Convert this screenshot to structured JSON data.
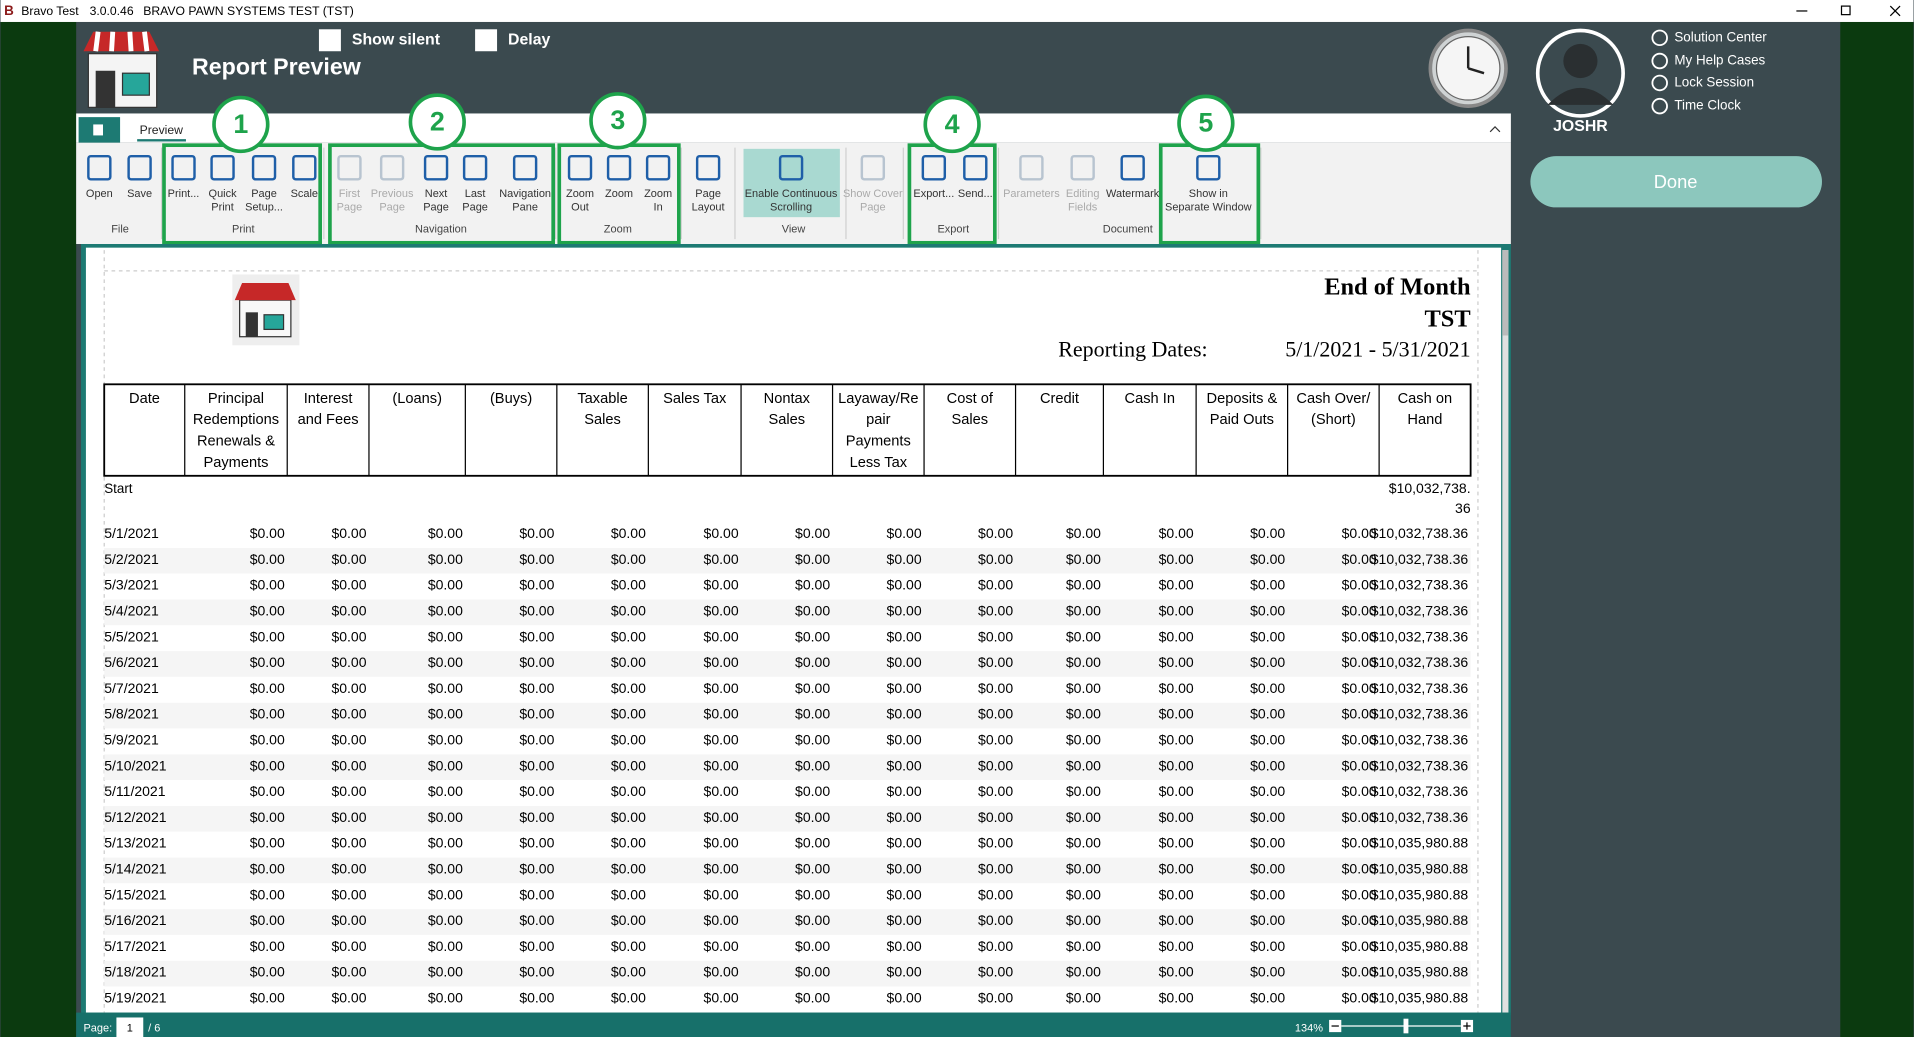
{
  "title_bar": {
    "app": "Bravo Test",
    "version": "3.0.0.46",
    "system": "BRAVO PAWN SYSTEMS TEST (TST)"
  },
  "header": {
    "title": "Report Preview",
    "show_silent": "Show silent",
    "delay": "Delay"
  },
  "tab": "Preview",
  "ribbon": {
    "groups": [
      "File",
      "Print",
      "Navigation",
      "Zoom",
      "View",
      "Export",
      "Document"
    ],
    "buttons": [
      {
        "label": [
          "Open"
        ],
        "enabled": true
      },
      {
        "label": [
          "Save"
        ],
        "enabled": true
      },
      {
        "label": [
          "Print..."
        ],
        "enabled": true
      },
      {
        "label": [
          "Quick",
          "Print"
        ],
        "enabled": true
      },
      {
        "label": [
          "Page",
          "Setup..."
        ],
        "enabled": true
      },
      {
        "label": [
          "Scale"
        ],
        "enabled": true
      },
      {
        "label": [
          "First",
          "Page"
        ],
        "enabled": false
      },
      {
        "label": [
          "Previous",
          "Page"
        ],
        "enabled": false
      },
      {
        "label": [
          "Next",
          "Page"
        ],
        "enabled": true
      },
      {
        "label": [
          "Last",
          "Page"
        ],
        "enabled": true
      },
      {
        "label": [
          "Navigation",
          "Pane"
        ],
        "enabled": true
      },
      {
        "label": [
          "Zoom",
          "Out"
        ],
        "enabled": true
      },
      {
        "label": [
          "Zoom"
        ],
        "enabled": true
      },
      {
        "label": [
          "Zoom",
          "In"
        ],
        "enabled": true
      },
      {
        "label": [
          "Page",
          "Layout"
        ],
        "enabled": true
      },
      {
        "label": [
          "Enable Continuous",
          "Scrolling"
        ],
        "enabled": true
      },
      {
        "label": [
          "Show Cover",
          "Page"
        ],
        "enabled": false
      },
      {
        "label": [
          "Export..."
        ],
        "enabled": true
      },
      {
        "label": [
          "Send..."
        ],
        "enabled": true
      },
      {
        "label": [
          "Parameters"
        ],
        "enabled": false
      },
      {
        "label": [
          "Editing",
          "Fields"
        ],
        "enabled": false
      },
      {
        "label": [
          "Watermark"
        ],
        "enabled": true
      },
      {
        "label": [
          "Show in",
          "Separate Window"
        ],
        "enabled": true
      }
    ],
    "callouts": [
      "1",
      "2",
      "3",
      "4",
      "5"
    ]
  },
  "user": {
    "name": "JOSHR",
    "links": [
      "Solution Center",
      "My Help Cases",
      "Lock Session",
      "Time Clock"
    ],
    "done": "Done"
  },
  "report": {
    "title": "End of Month",
    "store": "TST",
    "dates_label": "Reporting Dates:",
    "dates": "5/1/2021 - 5/31/2021",
    "columns": [
      [
        "Date"
      ],
      [
        "Principal",
        "Redemptions",
        "Renewals &",
        "Payments"
      ],
      [
        "Interest",
        "and Fees"
      ],
      [
        "(Loans)"
      ],
      [
        "(Buys)"
      ],
      [
        "Taxable",
        "Sales"
      ],
      [
        "Sales Tax"
      ],
      [
        "Nontax",
        "Sales"
      ],
      [
        "Layaway/Re",
        "pair",
        "Payments",
        "Less Tax"
      ],
      [
        "Cost of",
        "Sales"
      ],
      [
        "Credit"
      ],
      [
        "Cash In"
      ],
      [
        "Deposits &",
        "Paid Outs"
      ],
      [
        "Cash Over/",
        "(Short)"
      ],
      [
        "Cash on",
        "Hand"
      ]
    ],
    "start_row": {
      "label": "Start",
      "cash_on_hand": [
        "$10,032,738.",
        "36"
      ]
    },
    "rows": [
      [
        "5/1/2021",
        "$0.00",
        "$0.00",
        "$0.00",
        "$0.00",
        "$0.00",
        "$0.00",
        "$0.00",
        "$0.00",
        "$0.00",
        "$0.00",
        "$0.00",
        "$0.00",
        "$0.00",
        "$10,032,738.36"
      ],
      [
        "5/2/2021",
        "$0.00",
        "$0.00",
        "$0.00",
        "$0.00",
        "$0.00",
        "$0.00",
        "$0.00",
        "$0.00",
        "$0.00",
        "$0.00",
        "$0.00",
        "$0.00",
        "$0.00",
        "$10,032,738.36"
      ],
      [
        "5/3/2021",
        "$0.00",
        "$0.00",
        "$0.00",
        "$0.00",
        "$0.00",
        "$0.00",
        "$0.00",
        "$0.00",
        "$0.00",
        "$0.00",
        "$0.00",
        "$0.00",
        "$0.00",
        "$10,032,738.36"
      ],
      [
        "5/4/2021",
        "$0.00",
        "$0.00",
        "$0.00",
        "$0.00",
        "$0.00",
        "$0.00",
        "$0.00",
        "$0.00",
        "$0.00",
        "$0.00",
        "$0.00",
        "$0.00",
        "$0.00",
        "$10,032,738.36"
      ],
      [
        "5/5/2021",
        "$0.00",
        "$0.00",
        "$0.00",
        "$0.00",
        "$0.00",
        "$0.00",
        "$0.00",
        "$0.00",
        "$0.00",
        "$0.00",
        "$0.00",
        "$0.00",
        "$0.00",
        "$10,032,738.36"
      ],
      [
        "5/6/2021",
        "$0.00",
        "$0.00",
        "$0.00",
        "$0.00",
        "$0.00",
        "$0.00",
        "$0.00",
        "$0.00",
        "$0.00",
        "$0.00",
        "$0.00",
        "$0.00",
        "$0.00",
        "$10,032,738.36"
      ],
      [
        "5/7/2021",
        "$0.00",
        "$0.00",
        "$0.00",
        "$0.00",
        "$0.00",
        "$0.00",
        "$0.00",
        "$0.00",
        "$0.00",
        "$0.00",
        "$0.00",
        "$0.00",
        "$0.00",
        "$10,032,738.36"
      ],
      [
        "5/8/2021",
        "$0.00",
        "$0.00",
        "$0.00",
        "$0.00",
        "$0.00",
        "$0.00",
        "$0.00",
        "$0.00",
        "$0.00",
        "$0.00",
        "$0.00",
        "$0.00",
        "$0.00",
        "$10,032,738.36"
      ],
      [
        "5/9/2021",
        "$0.00",
        "$0.00",
        "$0.00",
        "$0.00",
        "$0.00",
        "$0.00",
        "$0.00",
        "$0.00",
        "$0.00",
        "$0.00",
        "$0.00",
        "$0.00",
        "$0.00",
        "$10,032,738.36"
      ],
      [
        "5/10/2021",
        "$0.00",
        "$0.00",
        "$0.00",
        "$0.00",
        "$0.00",
        "$0.00",
        "$0.00",
        "$0.00",
        "$0.00",
        "$0.00",
        "$0.00",
        "$0.00",
        "$0.00",
        "$10,032,738.36"
      ],
      [
        "5/11/2021",
        "$0.00",
        "$0.00",
        "$0.00",
        "$0.00",
        "$0.00",
        "$0.00",
        "$0.00",
        "$0.00",
        "$0.00",
        "$0.00",
        "$0.00",
        "$0.00",
        "$0.00",
        "$10,032,738.36"
      ],
      [
        "5/12/2021",
        "$0.00",
        "$0.00",
        "$0.00",
        "$0.00",
        "$0.00",
        "$0.00",
        "$0.00",
        "$0.00",
        "$0.00",
        "$0.00",
        "$0.00",
        "$0.00",
        "$0.00",
        "$10,032,738.36"
      ],
      [
        "5/13/2021",
        "$0.00",
        "$0.00",
        "$0.00",
        "$0.00",
        "$0.00",
        "$0.00",
        "$0.00",
        "$0.00",
        "$0.00",
        "$0.00",
        "$0.00",
        "$0.00",
        "$0.00",
        "$10,035,980.88"
      ],
      [
        "5/14/2021",
        "$0.00",
        "$0.00",
        "$0.00",
        "$0.00",
        "$0.00",
        "$0.00",
        "$0.00",
        "$0.00",
        "$0.00",
        "$0.00",
        "$0.00",
        "$0.00",
        "$0.00",
        "$10,035,980.88"
      ],
      [
        "5/15/2021",
        "$0.00",
        "$0.00",
        "$0.00",
        "$0.00",
        "$0.00",
        "$0.00",
        "$0.00",
        "$0.00",
        "$0.00",
        "$0.00",
        "$0.00",
        "$0.00",
        "$0.00",
        "$10,035,980.88"
      ],
      [
        "5/16/2021",
        "$0.00",
        "$0.00",
        "$0.00",
        "$0.00",
        "$0.00",
        "$0.00",
        "$0.00",
        "$0.00",
        "$0.00",
        "$0.00",
        "$0.00",
        "$0.00",
        "$0.00",
        "$10,035,980.88"
      ],
      [
        "5/17/2021",
        "$0.00",
        "$0.00",
        "$0.00",
        "$0.00",
        "$0.00",
        "$0.00",
        "$0.00",
        "$0.00",
        "$0.00",
        "$0.00",
        "$0.00",
        "$0.00",
        "$0.00",
        "$10,035,980.88"
      ],
      [
        "5/18/2021",
        "$0.00",
        "$0.00",
        "$0.00",
        "$0.00",
        "$0.00",
        "$0.00",
        "$0.00",
        "$0.00",
        "$0.00",
        "$0.00",
        "$0.00",
        "$0.00",
        "$0.00",
        "$10,035,980.88"
      ],
      [
        "5/19/2021",
        "$0.00",
        "$0.00",
        "$0.00",
        "$0.00",
        "$0.00",
        "$0.00",
        "$0.00",
        "$0.00",
        "$0.00",
        "$0.00",
        "$0.00",
        "$0.00",
        "$0.00",
        "$10,035,980.88"
      ]
    ]
  },
  "status_bar": {
    "page_label": "Page:",
    "page": "1",
    "page_total": "/ 6",
    "zoom": "134%"
  }
}
